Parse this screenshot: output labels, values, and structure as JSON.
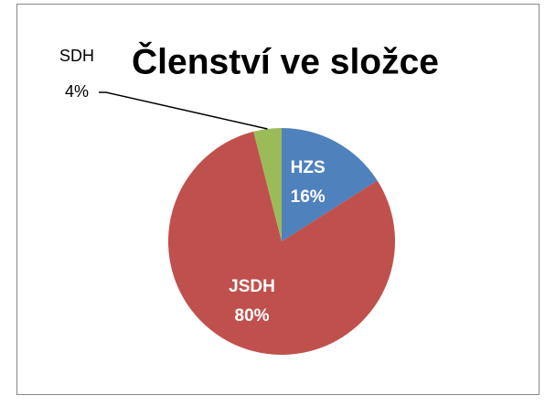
{
  "chart_data": {
    "type": "pie",
    "title": "Členství ve složce",
    "categories": [
      "HZS",
      "JSDH",
      "SDH"
    ],
    "values": [
      16,
      80,
      4
    ],
    "value_labels": [
      "16%",
      "80%",
      "4%"
    ],
    "colors": [
      "#4f81bd",
      "#c0504d",
      "#9bbb59"
    ]
  }
}
